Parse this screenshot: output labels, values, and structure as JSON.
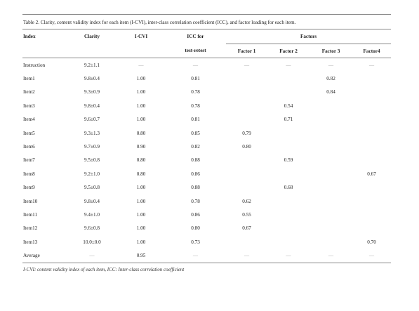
{
  "caption": "Table 2. Clarity, content validity index for each item (I-CVI), inter-class correlation coefficient (ICC), and factor loading for each item.",
  "headers": {
    "index": "Index",
    "clarity": "Clarity",
    "icvi": "I-CVI",
    "icc_line1": "ICC for",
    "icc_line2": "test-retest",
    "factors": "Factors",
    "factor1": "Factor 1",
    "factor2": "Factor 2",
    "factor3": "Factor 3",
    "factor4": "Factor4"
  },
  "rows": [
    {
      "index": "Instruction",
      "clarity": "9.2±1.1",
      "icvi": "—",
      "icc": "—",
      "f1": "—",
      "f2": "—",
      "f3": "—",
      "f4": "—"
    },
    {
      "index": "Item1",
      "clarity": "9.8±0.4",
      "icvi": "1.00",
      "icc": "0.81",
      "f1": "",
      "f2": "",
      "f3": "0.82",
      "f4": ""
    },
    {
      "index": "Item2",
      "clarity": "9.3±0.9",
      "icvi": "1.00",
      "icc": "0.78",
      "f1": "",
      "f2": "",
      "f3": "0.84",
      "f4": ""
    },
    {
      "index": "Item3",
      "clarity": "9.8±0.4",
      "icvi": "1.00",
      "icc": "0.78",
      "f1": "",
      "f2": "0.54",
      "f3": "",
      "f4": ""
    },
    {
      "index": "Item4",
      "clarity": "9.6±0.7",
      "icvi": "1.00",
      "icc": "0.81",
      "f1": "",
      "f2": "0.71",
      "f3": "",
      "f4": ""
    },
    {
      "index": "Item5",
      "clarity": "9.3±1.3",
      "icvi": "0.80",
      "icc": "0.85",
      "f1": "0.79",
      "f2": "",
      "f3": "",
      "f4": ""
    },
    {
      "index": "Item6",
      "clarity": "9.7±0.9",
      "icvi": "0.90",
      "icc": "0.82",
      "f1": "0.80",
      "f2": "",
      "f3": "",
      "f4": ""
    },
    {
      "index": "Item7",
      "clarity": "9.5±0.8",
      "icvi": "0.80",
      "icc": "0.88",
      "f1": "",
      "f2": "0.59",
      "f3": "",
      "f4": ""
    },
    {
      "index": "Item8",
      "clarity": "9.2±1.0",
      "icvi": "0.80",
      "icc": "0.86",
      "f1": "",
      "f2": "",
      "f3": "",
      "f4": "0.67"
    },
    {
      "index": "Item9",
      "clarity": "9.5±0.8",
      "icvi": "1.00",
      "icc": "0.88",
      "f1": "",
      "f2": "0.68",
      "f3": "",
      "f4": ""
    },
    {
      "index": "Item10",
      "clarity": "9.8±0.4",
      "icvi": "1.00",
      "icc": "0.78",
      "f1": "0.62",
      "f2": "",
      "f3": "",
      "f4": ""
    },
    {
      "index": "Item11",
      "clarity": "9.4±1.0",
      "icvi": "1.00",
      "icc": "0.86",
      "f1": "0.55",
      "f2": "",
      "f3": "",
      "f4": ""
    },
    {
      "index": "Item12",
      "clarity": "9.6±0.8",
      "icvi": "1.00",
      "icc": "0.80",
      "f1": "0.67",
      "f2": "",
      "f3": "",
      "f4": ""
    },
    {
      "index": "Item13",
      "clarity": "10.0±0.0",
      "icvi": "1.00",
      "icc": "0.73",
      "f1": "",
      "f2": "",
      "f3": "",
      "f4": "0.70"
    },
    {
      "index": "Average",
      "clarity": "—",
      "icvi": "0.95",
      "icc": "—",
      "f1": "—",
      "f2": "—",
      "f3": "—",
      "f4": "—"
    }
  ],
  "footnote": "I-CVI: content validity index of each item, ICC: Inter-class correlation coefficient"
}
